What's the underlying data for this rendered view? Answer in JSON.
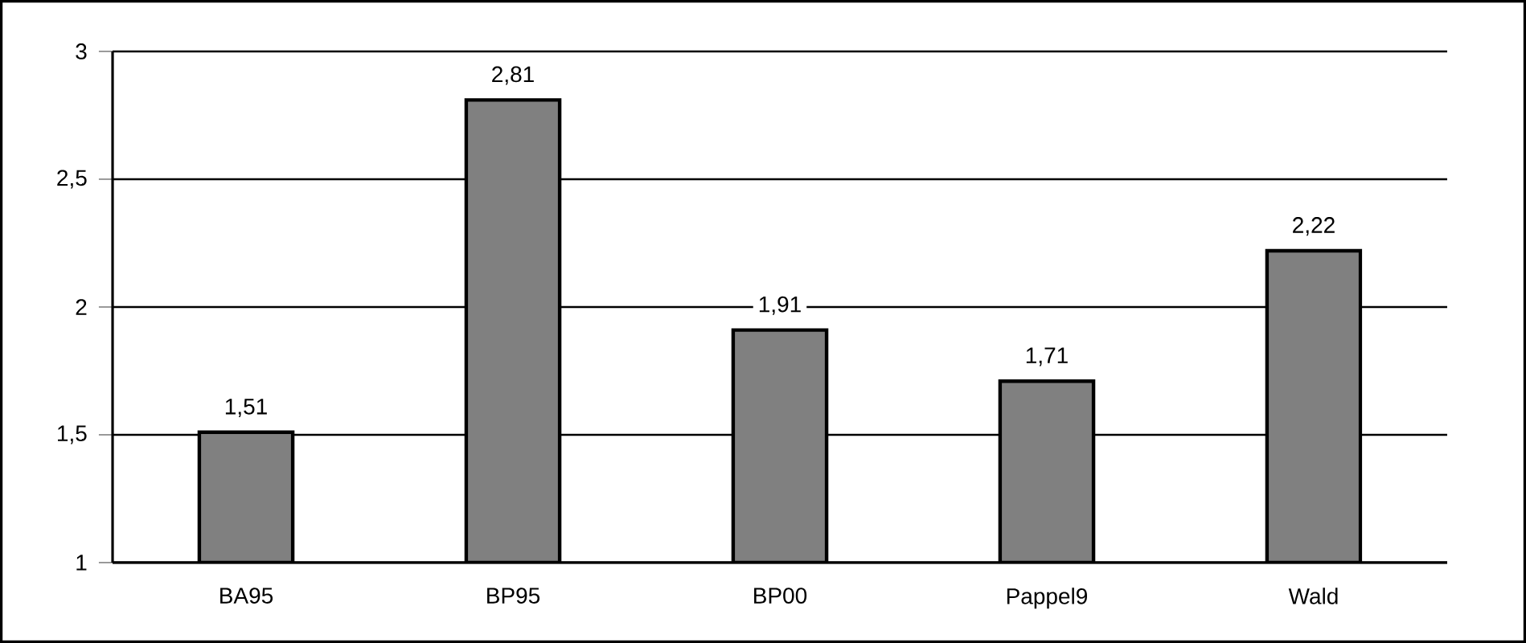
{
  "chart_data": {
    "type": "bar",
    "categories": [
      "BA95",
      "BP95",
      "BP00",
      "Pappel9",
      "Wald"
    ],
    "values": [
      1.51,
      2.81,
      1.91,
      1.71,
      2.22
    ],
    "value_labels": [
      "1,51",
      "2,81",
      "1,91",
      "1,71",
      "2,22"
    ],
    "color": "#808080",
    "ylim": [
      1,
      3
    ],
    "yticks": [
      1,
      {
        "value": 1.5,
        "label": "1,5"
      },
      2,
      {
        "value": 2.5,
        "label": "2,5"
      },
      3
    ],
    "grid": "y"
  }
}
